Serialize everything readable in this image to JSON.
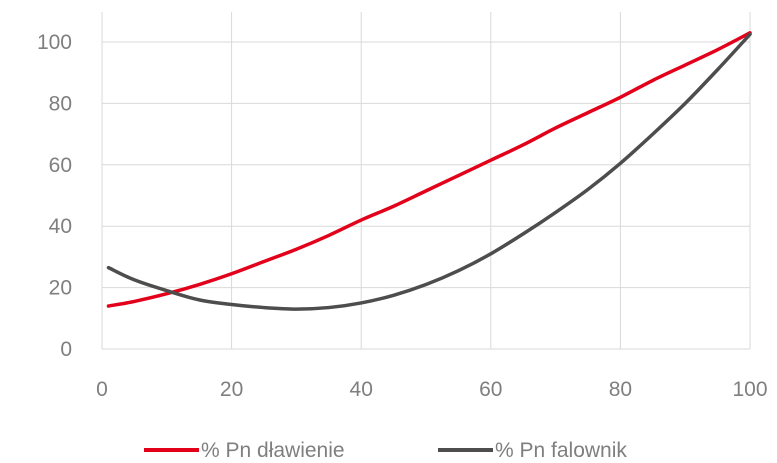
{
  "chart_data": {
    "type": "line",
    "title": "",
    "xlabel": "",
    "ylabel": "",
    "xlim": [
      0,
      100
    ],
    "ylim": [
      0,
      100
    ],
    "x_ticks": [
      "0",
      "20",
      "40",
      "60",
      "80",
      "100"
    ],
    "y_ticks": [
      "0",
      "20",
      "40",
      "60",
      "80",
      "100"
    ],
    "grid": "vertical and horizontal",
    "legend_position": "bottom",
    "series": [
      {
        "name": "% Pn dławienie",
        "color": "#e2001a",
        "x": [
          1,
          5,
          10,
          15,
          20,
          25,
          30,
          35,
          40,
          45,
          50,
          55,
          60,
          65,
          70,
          75,
          80,
          85,
          90,
          95,
          100
        ],
        "y": [
          14,
          15.5,
          18,
          21,
          24.5,
          28.5,
          32.5,
          37,
          42,
          46.5,
          51.5,
          56.5,
          61.5,
          66.5,
          72,
          77,
          82,
          87.5,
          92.5,
          97.5,
          103
        ]
      },
      {
        "name": "% Pn falownik",
        "color": "#4d4d4d",
        "x": [
          1,
          5,
          10,
          15,
          20,
          25,
          30,
          35,
          40,
          45,
          50,
          55,
          60,
          65,
          70,
          75,
          80,
          85,
          90,
          95,
          100
        ],
        "y": [
          26.5,
          22.5,
          19,
          16,
          14.5,
          13.5,
          13,
          13.5,
          15,
          17.5,
          21,
          25.5,
          31,
          37.5,
          44.5,
          52,
          60.5,
          70,
          80,
          91,
          102.5
        ]
      }
    ]
  }
}
